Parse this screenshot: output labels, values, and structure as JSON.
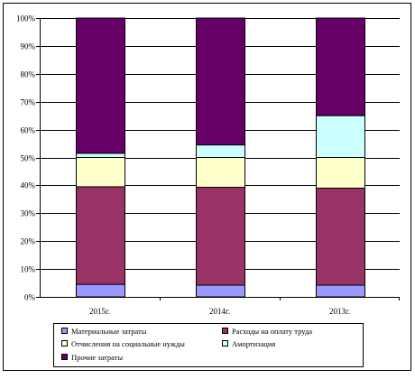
{
  "chart_data": {
    "type": "bar",
    "stacked": true,
    "percent": true,
    "categories": [
      "2015г.",
      "2014г.",
      "2013г."
    ],
    "series": [
      {
        "name": "Материальные затраты",
        "color": "#9999ff",
        "values": [
          4.5,
          4.2,
          4.2
        ]
      },
      {
        "name": "Расходы на оплату труда",
        "color": "#993366",
        "values": [
          35.0,
          35.1,
          34.8
        ]
      },
      {
        "name": "Отчисления на социальные нужды",
        "color": "#ffffcc",
        "values": [
          10.5,
          10.7,
          11.0
        ]
      },
      {
        "name": "Амортизация",
        "color": "#ccffff",
        "values": [
          1.5,
          4.5,
          15.0
        ]
      },
      {
        "name": "Прочие затраты",
        "color": "#660066",
        "values": [
          48.5,
          45.5,
          35.0
        ]
      }
    ],
    "yticks": [
      "0%",
      "10%",
      "20%",
      "30%",
      "40%",
      "50%",
      "60%",
      "70%",
      "80%",
      "90%",
      "100%"
    ],
    "ylim": [
      0,
      100
    ],
    "grid": true,
    "legend_position": "bottom",
    "title": "",
    "xlabel": "",
    "ylabel": ""
  }
}
